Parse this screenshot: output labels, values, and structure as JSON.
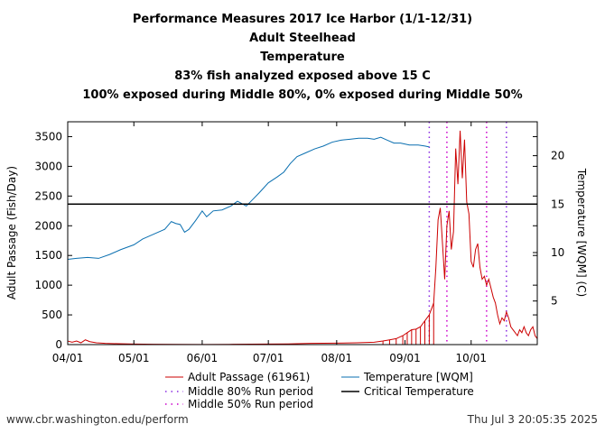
{
  "titles": [
    "Performance Measures 2017 Ice Harbor (1/1-12/31)",
    "Adult Steelhead",
    "Temperature",
    "83% fish analyzed exposed above 15 C",
    "100% exposed during Middle 80%, 0% exposed during Middle 50%"
  ],
  "footer": {
    "left": "www.cbr.washington.edu/perform",
    "right": "Thu Jul  3 20:05:35 2025"
  },
  "colors": {
    "passage": "#cc0000",
    "temperature": "#0a6fb0",
    "critical": "#000000",
    "middle80": "#8a2be2",
    "middle50": "#cc00cc"
  },
  "chart_data": {
    "type": "line",
    "xlabel": "",
    "ylabel": "Adult Passage (Fish/Day)",
    "y2label": "Temperature [WQM] (C)",
    "xlim": [
      "2017-04-01",
      "2017-10-31"
    ],
    "ylim": [
      0,
      3750
    ],
    "y2lim": [
      0.5,
      23.5
    ],
    "x_ticks": [
      {
        "date": "2017-04-01",
        "label": "04/01"
      },
      {
        "date": "2017-05-01",
        "label": "05/01"
      },
      {
        "date": "2017-06-01",
        "label": "06/01"
      },
      {
        "date": "2017-07-01",
        "label": "07/01"
      },
      {
        "date": "2017-08-01",
        "label": "08/01"
      },
      {
        "date": "2017-09-01",
        "label": "09/01"
      },
      {
        "date": "2017-10-01",
        "label": "10/01"
      }
    ],
    "y_ticks": [
      0,
      500,
      1000,
      1500,
      2000,
      2500,
      3000,
      3500
    ],
    "y2_ticks": [
      5,
      10,
      15,
      20
    ],
    "legend": [
      {
        "key": "passage",
        "label": "Adult Passage (61961)",
        "style": "line"
      },
      {
        "key": "temperature",
        "label": "Temperature [WQM]",
        "style": "line"
      },
      {
        "key": "middle80",
        "label": "Middle 80% Run period",
        "style": "dots"
      },
      {
        "key": "critical",
        "label": "Critical Temperature",
        "style": "line"
      },
      {
        "key": "middle50",
        "label": "Middle 50% Run period",
        "style": "dots"
      }
    ],
    "critical_temperature": 15,
    "middle80_dates": [
      "2017-09-12",
      "2017-10-17"
    ],
    "middle50_dates": [
      "2017-09-20",
      "2017-10-08"
    ],
    "series": [
      {
        "name": "Adult Passage (61961)",
        "axis": "left",
        "points": [
          [
            "2017-04-01",
            60
          ],
          [
            "2017-04-03",
            40
          ],
          [
            "2017-04-05",
            60
          ],
          [
            "2017-04-07",
            30
          ],
          [
            "2017-04-09",
            80
          ],
          [
            "2017-04-11",
            50
          ],
          [
            "2017-04-14",
            30
          ],
          [
            "2017-04-18",
            20
          ],
          [
            "2017-04-24",
            15
          ],
          [
            "2017-05-01",
            10
          ],
          [
            "2017-05-10",
            5
          ],
          [
            "2017-05-20",
            3
          ],
          [
            "2017-06-01",
            2
          ],
          [
            "2017-06-15",
            5
          ],
          [
            "2017-07-01",
            10
          ],
          [
            "2017-07-10",
            12
          ],
          [
            "2017-07-20",
            20
          ],
          [
            "2017-08-01",
            25
          ],
          [
            "2017-08-10",
            30
          ],
          [
            "2017-08-18",
            40
          ],
          [
            "2017-08-22",
            60
          ],
          [
            "2017-08-25",
            80
          ],
          [
            "2017-08-28",
            100
          ],
          [
            "2017-08-31",
            150
          ],
          [
            "2017-09-02",
            200
          ],
          [
            "2017-09-04",
            250
          ],
          [
            "2017-09-06",
            260
          ],
          [
            "2017-09-08",
            300
          ],
          [
            "2017-09-10",
            400
          ],
          [
            "2017-09-12",
            500
          ],
          [
            "2017-09-14",
            700
          ],
          [
            "2017-09-15",
            1300
          ],
          [
            "2017-09-16",
            2100
          ],
          [
            "2017-09-17",
            2300
          ],
          [
            "2017-09-18",
            1700
          ],
          [
            "2017-09-19",
            1100
          ],
          [
            "2017-09-20",
            2000
          ],
          [
            "2017-09-21",
            2250
          ],
          [
            "2017-09-22",
            1600
          ],
          [
            "2017-09-23",
            1900
          ],
          [
            "2017-09-24",
            3300
          ],
          [
            "2017-09-25",
            2700
          ],
          [
            "2017-09-26",
            3600
          ],
          [
            "2017-09-27",
            2800
          ],
          [
            "2017-09-28",
            3450
          ],
          [
            "2017-09-29",
            2400
          ],
          [
            "2017-09-30",
            2200
          ],
          [
            "2017-10-01",
            1400
          ],
          [
            "2017-10-02",
            1300
          ],
          [
            "2017-10-03",
            1600
          ],
          [
            "2017-10-04",
            1700
          ],
          [
            "2017-10-05",
            1300
          ],
          [
            "2017-10-06",
            1100
          ],
          [
            "2017-10-07",
            1150
          ],
          [
            "2017-10-08",
            1000
          ],
          [
            "2017-10-09",
            1100
          ],
          [
            "2017-10-10",
            950
          ],
          [
            "2017-10-11",
            800
          ],
          [
            "2017-10-12",
            700
          ],
          [
            "2017-10-13",
            500
          ],
          [
            "2017-10-14",
            350
          ],
          [
            "2017-10-15",
            450
          ],
          [
            "2017-10-16",
            400
          ],
          [
            "2017-10-17",
            550
          ],
          [
            "2017-10-18",
            450
          ],
          [
            "2017-10-19",
            300
          ],
          [
            "2017-10-20",
            250
          ],
          [
            "2017-10-21",
            200
          ],
          [
            "2017-10-22",
            150
          ],
          [
            "2017-10-23",
            250
          ],
          [
            "2017-10-24",
            200
          ],
          [
            "2017-10-25",
            300
          ],
          [
            "2017-10-26",
            200
          ],
          [
            "2017-10-27",
            150
          ],
          [
            "2017-10-28",
            250
          ],
          [
            "2017-10-29",
            300
          ],
          [
            "2017-10-30",
            150
          ],
          [
            "2017-10-31",
            100
          ]
        ]
      },
      {
        "name": "Temperature [WQM]",
        "axis": "right",
        "points": [
          [
            "2017-04-01",
            9.3
          ],
          [
            "2017-04-05",
            9.4
          ],
          [
            "2017-04-10",
            9.5
          ],
          [
            "2017-04-15",
            9.4
          ],
          [
            "2017-04-20",
            9.8
          ],
          [
            "2017-04-25",
            10.3
          ],
          [
            "2017-05-01",
            10.8
          ],
          [
            "2017-05-05",
            11.4
          ],
          [
            "2017-05-10",
            11.9
          ],
          [
            "2017-05-15",
            12.4
          ],
          [
            "2017-05-18",
            13.2
          ],
          [
            "2017-05-20",
            13.0
          ],
          [
            "2017-05-22",
            12.9
          ],
          [
            "2017-05-24",
            12.1
          ],
          [
            "2017-05-26",
            12.4
          ],
          [
            "2017-05-29",
            13.3
          ],
          [
            "2017-06-01",
            14.3
          ],
          [
            "2017-06-03",
            13.7
          ],
          [
            "2017-06-06",
            14.3
          ],
          [
            "2017-06-10",
            14.4
          ],
          [
            "2017-06-14",
            14.8
          ],
          [
            "2017-06-17",
            15.3
          ],
          [
            "2017-06-21",
            14.8
          ],
          [
            "2017-06-24",
            15.5
          ],
          [
            "2017-06-27",
            16.2
          ],
          [
            "2017-07-01",
            17.2
          ],
          [
            "2017-07-05",
            17.8
          ],
          [
            "2017-07-08",
            18.3
          ],
          [
            "2017-07-11",
            19.2
          ],
          [
            "2017-07-14",
            19.9
          ],
          [
            "2017-07-18",
            20.3
          ],
          [
            "2017-07-22",
            20.7
          ],
          [
            "2017-07-26",
            21.0
          ],
          [
            "2017-07-30",
            21.4
          ],
          [
            "2017-08-03",
            21.6
          ],
          [
            "2017-08-07",
            21.7
          ],
          [
            "2017-08-11",
            21.8
          ],
          [
            "2017-08-15",
            21.8
          ],
          [
            "2017-08-18",
            21.7
          ],
          [
            "2017-08-21",
            21.9
          ],
          [
            "2017-08-24",
            21.6
          ],
          [
            "2017-08-27",
            21.3
          ],
          [
            "2017-08-30",
            21.3
          ],
          [
            "2017-09-03",
            21.1
          ],
          [
            "2017-09-07",
            21.1
          ],
          [
            "2017-09-10",
            21.0
          ],
          [
            "2017-09-12",
            20.9
          ]
        ]
      }
    ]
  }
}
